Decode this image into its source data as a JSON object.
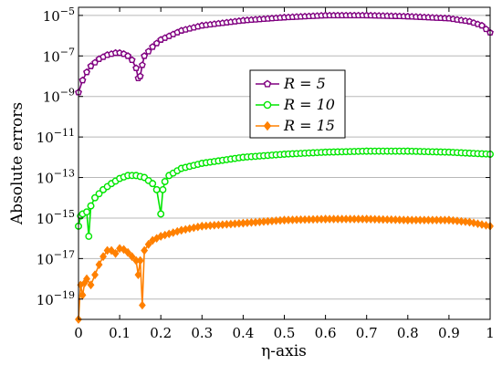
{
  "chart_data": {
    "type": "line",
    "xlabel": "η-axis",
    "ylabel": "Absolute errors",
    "xlim": [
      0,
      1
    ],
    "ylim_log10": [
      -20,
      -4.6
    ],
    "yscale": "log",
    "grid": "horizontal",
    "legend_placement": "center",
    "x_ticks": [
      "0",
      "0.1",
      "0.2",
      "0.3",
      "0.4",
      "0.5",
      "0.6",
      "0.7",
      "0.8",
      "0.9",
      "1"
    ],
    "y_ticks": [
      {
        "value": -5,
        "base": "10",
        "exp": "−5"
      },
      {
        "value": -7,
        "base": "10",
        "exp": "−7"
      },
      {
        "value": -9,
        "base": "10",
        "exp": "−9"
      },
      {
        "value": -11,
        "base": "10",
        "exp": "−11"
      },
      {
        "value": -13,
        "base": "10",
        "exp": "−13"
      },
      {
        "value": -15,
        "base": "10",
        "exp": "−15"
      },
      {
        "value": -17,
        "base": "10",
        "exp": "−17"
      },
      {
        "value": -19,
        "base": "10",
        "exp": "−19"
      }
    ],
    "series": [
      {
        "name": "R = 5",
        "color": "#800080",
        "marker": "pentagon",
        "x": [
          0,
          0.01,
          0.02,
          0.03,
          0.05,
          0.07,
          0.09,
          0.1,
          0.11,
          0.12,
          0.13,
          0.14,
          0.145,
          0.15,
          0.155,
          0.16,
          0.18,
          0.2,
          0.25,
          0.3,
          0.4,
          0.5,
          0.6,
          0.7,
          0.8,
          0.9,
          0.95,
          0.98,
          1.0
        ],
        "y": [
          -8.8,
          -8.2,
          -7.8,
          -7.5,
          -7.15,
          -6.95,
          -6.85,
          -6.85,
          -6.9,
          -7.0,
          -7.2,
          -7.6,
          -8.1,
          -8.0,
          -7.45,
          -7.0,
          -6.55,
          -6.2,
          -5.75,
          -5.5,
          -5.25,
          -5.1,
          -5.0,
          -5.0,
          -5.05,
          -5.15,
          -5.3,
          -5.5,
          -5.85
        ]
      },
      {
        "name": "R = 10",
        "color": "#00e600",
        "marker": "circle",
        "x": [
          0,
          0.005,
          0.01,
          0.02,
          0.025,
          0.03,
          0.04,
          0.06,
          0.08,
          0.1,
          0.12,
          0.14,
          0.16,
          0.18,
          0.19,
          0.2,
          0.205,
          0.21,
          0.22,
          0.25,
          0.3,
          0.4,
          0.5,
          0.6,
          0.7,
          0.8,
          0.9,
          0.95,
          1.0
        ],
        "y": [
          -15.4,
          -14.9,
          -14.8,
          -14.7,
          -15.9,
          -14.4,
          -14.0,
          -13.6,
          -13.3,
          -13.05,
          -12.9,
          -12.9,
          -13.0,
          -13.3,
          -13.6,
          -14.8,
          -13.6,
          -13.2,
          -12.9,
          -12.55,
          -12.3,
          -12.0,
          -11.85,
          -11.75,
          -11.7,
          -11.7,
          -11.75,
          -11.8,
          -11.85
        ]
      },
      {
        "name": "R = 15",
        "color": "#ff8000",
        "marker": "diamond",
        "x": [
          0,
          0.005,
          0.01,
          0.015,
          0.02,
          0.03,
          0.04,
          0.05,
          0.06,
          0.07,
          0.08,
          0.09,
          0.1,
          0.11,
          0.12,
          0.13,
          0.14,
          0.145,
          0.15,
          0.155,
          0.16,
          0.17,
          0.18,
          0.2,
          0.25,
          0.3,
          0.4,
          0.5,
          0.6,
          0.7,
          0.8,
          0.9,
          0.95,
          1.0
        ],
        "y": [
          -20.0,
          -18.3,
          -18.8,
          -18.2,
          -18.0,
          -18.3,
          -17.8,
          -17.3,
          -16.9,
          -16.6,
          -16.6,
          -16.75,
          -16.5,
          -16.55,
          -16.7,
          -16.9,
          -17.1,
          -17.8,
          -17.1,
          -19.3,
          -16.6,
          -16.3,
          -16.1,
          -15.9,
          -15.6,
          -15.4,
          -15.25,
          -15.1,
          -15.05,
          -15.05,
          -15.1,
          -15.1,
          -15.2,
          -15.4
        ]
      }
    ]
  }
}
